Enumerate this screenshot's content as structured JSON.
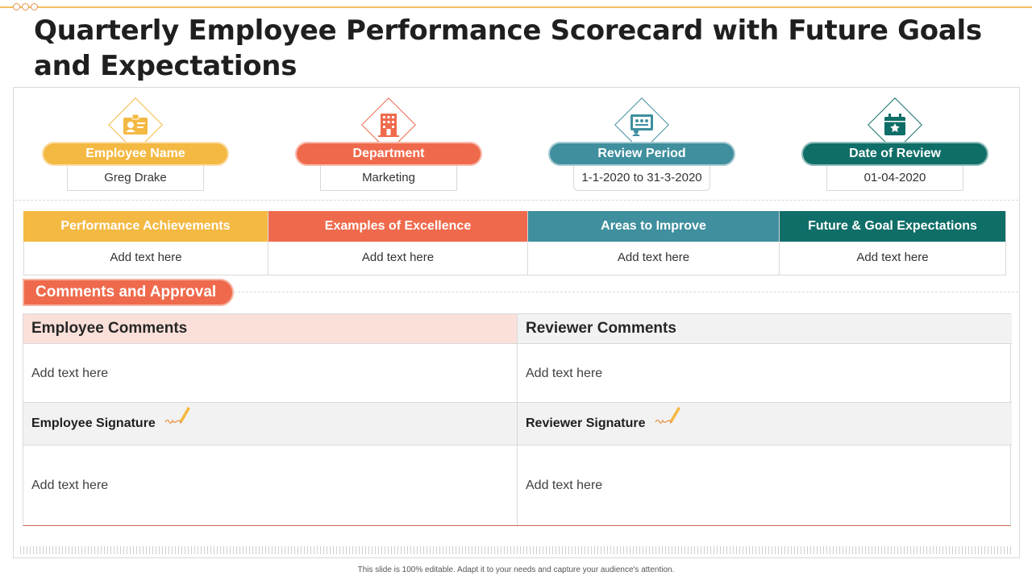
{
  "title": "Quarterly Employee Performance Scorecard with Future Goals and Expectations",
  "colors": {
    "yellow": "#f4b942",
    "coral": "#ef6a4c",
    "teal": "#3f8f9e",
    "dark_teal": "#0f6e68",
    "pink_header": "#fbe0da",
    "grey_header": "#f2f2f2"
  },
  "info_cards": [
    {
      "label": "Employee Name",
      "value": "Greg Drake",
      "icon": "id-card-icon"
    },
    {
      "label": "Department",
      "value": "Marketing",
      "icon": "building-icon"
    },
    {
      "label": "Review Period",
      "value": "1-1-2020 to 31-3-2020",
      "icon": "presentation-board-icon"
    },
    {
      "label": "Date of Review",
      "value": "01-04-2020",
      "icon": "calendar-icon"
    }
  ],
  "metrics": [
    {
      "heading": "Performance Achievements",
      "text": "Add text here"
    },
    {
      "heading": "Examples of Excellence",
      "text": "Add text here"
    },
    {
      "heading": "Areas to Improve",
      "text": "Add text here"
    },
    {
      "heading": "Future & Goal Expectations",
      "text": "Add text here"
    }
  ],
  "approval": {
    "section_title": "Comments and Approval",
    "employee": {
      "comments_heading": "Employee Comments",
      "comments_text": "Add text here",
      "signature_label": "Employee Signature",
      "signature_text": "Add text here"
    },
    "reviewer": {
      "comments_heading": "Reviewer Comments",
      "comments_text": "Add text here",
      "signature_label": "Reviewer Signature",
      "signature_text": "Add text here"
    }
  },
  "footer": "This slide is 100% editable. Adapt it to your needs and capture your audience's attention."
}
